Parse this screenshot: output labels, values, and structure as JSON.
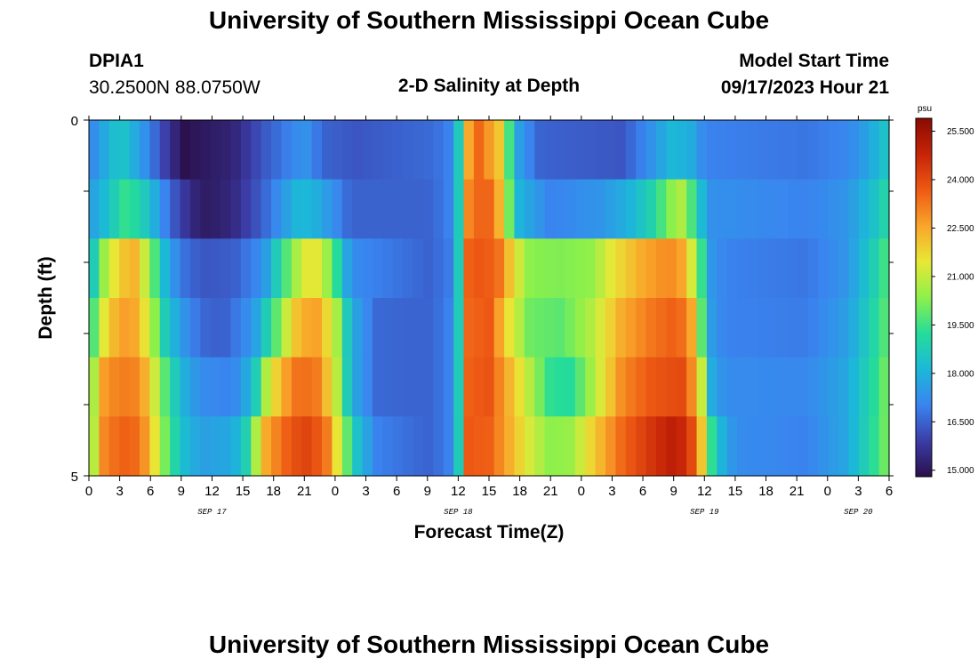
{
  "header": {
    "title": "University of Southern Mississippi Ocean Cube",
    "station": "DPIA1",
    "coords": "30.2500N  88.0750W",
    "chart_title": "2-D Salinity at Depth",
    "start_label": "Model Start Time",
    "start_value": "09/17/2023 Hour 21"
  },
  "footer": {
    "title": "University of Southern Mississippi Ocean Cube"
  },
  "chart_data": {
    "type": "heatmap",
    "title": "2-D Salinity at Depth",
    "xlabel": "Forecast Time(Z)",
    "ylabel": "Depth (ft)",
    "x_tick_labels": [
      "0",
      "3",
      "6",
      "9",
      "12",
      "15",
      "18",
      "21",
      "0",
      "3",
      "6",
      "9",
      "12",
      "15",
      "18",
      "21",
      "0",
      "3",
      "6",
      "9",
      "12",
      "15",
      "18",
      "21",
      "0",
      "3",
      "6"
    ],
    "date_labels": [
      {
        "text": "SEP 17",
        "hour": 12
      },
      {
        "text": "SEP 18",
        "hour": 36
      },
      {
        "text": "SEP 19",
        "hour": 60
      },
      {
        "text": "SEP 20",
        "hour": 75
      }
    ],
    "y_tick_labels": [
      {
        "value": 0,
        "text": "0"
      },
      {
        "value": 5,
        "text": "5"
      }
    ],
    "ylim": [
      0,
      5
    ],
    "xlim_hours": [
      0,
      78
    ],
    "colorbar": {
      "unit": "psu",
      "min": 14.8,
      "max": 25.9,
      "tick_labels": [
        "25.500",
        "24.000",
        "22.500",
        "21.000",
        "19.500",
        "18.000",
        "16.500",
        "15.000"
      ],
      "tick_values": [
        25.5,
        24.0,
        22.5,
        21.0,
        19.5,
        18.0,
        16.5,
        15.0
      ],
      "colors": [
        "#2a0f4a",
        "#3b3da8",
        "#3a84f0",
        "#1cb8d8",
        "#25dc9a",
        "#8ef04a",
        "#e8e836",
        "#f9a52a",
        "#ee5a14",
        "#c62408",
        "#8a0a02"
      ]
    },
    "series": [
      {
        "name": "0",
        "anchors": [
          [
            0,
            17.0
          ],
          [
            3,
            18.6
          ],
          [
            5,
            17.6
          ],
          [
            7,
            16.2
          ],
          [
            8.5,
            15.3
          ],
          [
            9,
            14.8
          ],
          [
            10.5,
            15.0
          ],
          [
            14,
            15.3
          ],
          [
            17,
            16.3
          ],
          [
            21,
            17.4
          ],
          [
            23,
            16.5
          ],
          [
            26,
            16.3
          ],
          [
            33,
            16.6
          ],
          [
            35,
            16.9
          ],
          [
            36,
            18.5
          ],
          [
            37,
            22.5
          ],
          [
            38,
            23.5
          ],
          [
            40,
            22.0
          ],
          [
            41,
            19.5
          ],
          [
            42,
            17.5
          ],
          [
            44,
            16.5
          ],
          [
            52,
            16.3
          ],
          [
            55,
            17.4
          ],
          [
            57,
            18.2
          ],
          [
            59,
            17.8
          ],
          [
            60,
            17.0
          ],
          [
            70,
            16.8
          ],
          [
            74,
            17.1
          ],
          [
            76,
            17.7
          ],
          [
            78,
            18.6
          ]
        ]
      },
      {
        "name": "1",
        "anchors": [
          [
            0,
            17.5
          ],
          [
            1.5,
            18.2
          ],
          [
            3.5,
            19.4
          ],
          [
            5,
            19.0
          ],
          [
            6.5,
            17.8
          ],
          [
            8,
            16.5
          ],
          [
            10,
            15.4
          ],
          [
            11.5,
            15.1
          ],
          [
            14,
            15.4
          ],
          [
            17,
            16.5
          ],
          [
            19,
            17.5
          ],
          [
            20.5,
            18.2
          ],
          [
            22,
            18.0
          ],
          [
            24,
            17.2
          ],
          [
            25.5,
            16.5
          ],
          [
            33,
            16.5
          ],
          [
            35,
            16.9
          ],
          [
            36,
            18.5
          ],
          [
            37,
            23.0
          ],
          [
            38,
            23.5
          ],
          [
            39.5,
            23.5
          ],
          [
            41,
            20.0
          ],
          [
            42,
            18.0
          ],
          [
            45,
            17.0
          ],
          [
            50,
            17.4
          ],
          [
            53,
            18.1
          ],
          [
            55,
            19.0
          ],
          [
            57,
            20.5
          ],
          [
            58,
            20.8
          ],
          [
            59.5,
            18.5
          ],
          [
            60.5,
            17.3
          ],
          [
            70,
            17.0
          ],
          [
            74,
            17.4
          ],
          [
            76.5,
            18.4
          ],
          [
            78,
            19.2
          ]
        ]
      },
      {
        "name": "2",
        "anchors": [
          [
            0,
            17.5
          ],
          [
            1,
            20.0
          ],
          [
            3,
            22.0
          ],
          [
            4.5,
            22.3
          ],
          [
            6,
            20.3
          ],
          [
            7.5,
            18.0
          ],
          [
            9,
            16.8
          ],
          [
            11,
            16.3
          ],
          [
            14,
            16.4
          ],
          [
            17,
            17.3
          ],
          [
            19,
            19.5
          ],
          [
            21,
            21.4
          ],
          [
            22.5,
            21.4
          ],
          [
            24,
            19.5
          ],
          [
            25.5,
            17.2
          ],
          [
            33,
            16.5
          ],
          [
            35,
            16.8
          ],
          [
            36,
            18.5
          ],
          [
            37,
            23.6
          ],
          [
            38.5,
            23.8
          ],
          [
            40,
            23.3
          ],
          [
            41.5,
            21.5
          ],
          [
            43,
            20.3
          ],
          [
            46,
            20.2
          ],
          [
            49,
            20.4
          ],
          [
            51,
            21.5
          ],
          [
            54,
            22.5
          ],
          [
            56.5,
            23.0
          ],
          [
            58,
            22.5
          ],
          [
            59.5,
            20.0
          ],
          [
            60.5,
            17.5
          ],
          [
            62,
            17.0
          ],
          [
            70,
            16.8
          ],
          [
            74,
            17.4
          ],
          [
            76.5,
            18.8
          ],
          [
            78,
            19.8
          ]
        ]
      },
      {
        "name": "3",
        "anchors": [
          [
            0,
            18.5
          ],
          [
            1,
            21.0
          ],
          [
            3,
            22.7
          ],
          [
            4.5,
            22.5
          ],
          [
            6,
            21.0
          ],
          [
            7.5,
            18.6
          ],
          [
            9,
            17.5
          ],
          [
            11,
            16.6
          ],
          [
            13,
            16.4
          ],
          [
            16,
            17.4
          ],
          [
            18,
            19.5
          ],
          [
            20,
            22.0
          ],
          [
            22,
            22.8
          ],
          [
            24,
            21.0
          ],
          [
            25.5,
            18.0
          ],
          [
            28,
            16.6
          ],
          [
            33,
            16.5
          ],
          [
            35,
            16.9
          ],
          [
            36,
            18.5
          ],
          [
            37,
            23.5
          ],
          [
            39,
            23.7
          ],
          [
            41,
            21.5
          ],
          [
            43,
            20.0
          ],
          [
            46,
            19.8
          ],
          [
            49,
            20.8
          ],
          [
            52,
            22.5
          ],
          [
            55,
            23.3
          ],
          [
            57,
            23.6
          ],
          [
            58.5,
            23.2
          ],
          [
            59.5,
            20.5
          ],
          [
            60.5,
            17.6
          ],
          [
            62,
            17.0
          ],
          [
            70,
            16.9
          ],
          [
            74,
            17.6
          ],
          [
            76.5,
            19.0
          ],
          [
            78,
            20.0
          ]
        ]
      },
      {
        "name": "4",
        "anchors": [
          [
            0,
            19.0
          ],
          [
            1,
            22.5
          ],
          [
            3,
            23.2
          ],
          [
            5,
            23.0
          ],
          [
            6.5,
            21.0
          ],
          [
            8,
            19.0
          ],
          [
            9.5,
            17.8
          ],
          [
            11,
            17.2
          ],
          [
            14,
            17.0
          ],
          [
            16,
            18.2
          ],
          [
            17.5,
            21.2
          ],
          [
            20,
            23.3
          ],
          [
            22,
            23.4
          ],
          [
            24,
            21.3
          ],
          [
            25.5,
            18.0
          ],
          [
            28,
            16.6
          ],
          [
            33,
            16.5
          ],
          [
            35,
            16.9
          ],
          [
            36,
            18.5
          ],
          [
            37,
            23.6
          ],
          [
            39,
            23.8
          ],
          [
            41,
            22.3
          ],
          [
            43,
            20.8
          ],
          [
            45,
            19.3
          ],
          [
            47,
            19.2
          ],
          [
            49,
            20.6
          ],
          [
            52,
            23.0
          ],
          [
            55,
            23.8
          ],
          [
            58,
            24.0
          ],
          [
            59.5,
            22.0
          ],
          [
            60.5,
            18.0
          ],
          [
            62,
            17.2
          ],
          [
            70,
            17.1
          ],
          [
            74,
            17.8
          ],
          [
            76.5,
            19.2
          ],
          [
            78,
            20.3
          ]
        ]
      },
      {
        "name": "5",
        "anchors": [
          [
            0,
            19.0
          ],
          [
            1,
            22.8
          ],
          [
            3,
            23.6
          ],
          [
            5,
            23.4
          ],
          [
            6.5,
            21.4
          ],
          [
            8,
            19.3
          ],
          [
            9.5,
            18.1
          ],
          [
            11,
            17.6
          ],
          [
            14,
            17.8
          ],
          [
            15.5,
            19.0
          ],
          [
            17,
            22.3
          ],
          [
            19,
            23.5
          ],
          [
            21,
            24.2
          ],
          [
            23,
            23.5
          ],
          [
            24.5,
            21.0
          ],
          [
            26,
            18.5
          ],
          [
            28,
            17.0
          ],
          [
            33,
            16.5
          ],
          [
            35,
            16.9
          ],
          [
            36,
            18.5
          ],
          [
            37,
            23.7
          ],
          [
            39,
            23.6
          ],
          [
            41,
            22.4
          ],
          [
            43,
            21.2
          ],
          [
            45,
            20.3
          ],
          [
            47,
            20.5
          ],
          [
            49,
            21.8
          ],
          [
            52,
            23.5
          ],
          [
            55,
            24.5
          ],
          [
            57,
            25.0
          ],
          [
            58.5,
            24.5
          ],
          [
            60,
            21.5
          ],
          [
            61,
            18.5
          ],
          [
            63,
            17.2
          ],
          [
            70,
            17.0
          ],
          [
            74,
            17.8
          ],
          [
            76.5,
            19.3
          ],
          [
            78,
            20.3
          ]
        ]
      }
    ],
    "cells_per_row": 79,
    "depth_rows": 6
  }
}
